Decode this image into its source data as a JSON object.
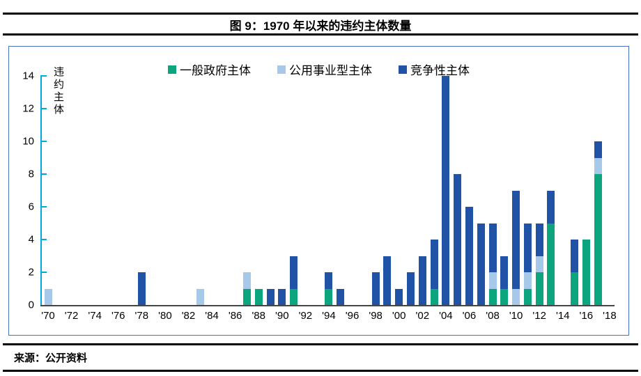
{
  "page": {
    "title": "图 9：1970 年以来的违约主体数量",
    "source_label": "来源：公开资料"
  },
  "colors": {
    "frame_border": "#4472C4",
    "y_axis": "#00A9E0",
    "x_axis": "#454545",
    "rule": "#000000",
    "green": "#0CA57E",
    "light_blue": "#A6C9E9",
    "dark_blue": "#2053A5"
  },
  "chart_data": {
    "type": "bar",
    "stacked": true,
    "title": "图 9：1970 年以来的违约主体数量",
    "ylabel": "违约主体",
    "xlabel": "",
    "ylim": [
      0,
      14
    ],
    "yticks": [
      0,
      2,
      4,
      6,
      8,
      10,
      12,
      14
    ],
    "grid": false,
    "legend_position": "top-center",
    "x_year_start": 1970,
    "x_year_end": 2018,
    "xtick_labels": [
      "'70",
      "'72",
      "'74",
      "'76",
      "'78",
      "'80",
      "'82",
      "'84",
      "'86",
      "'88",
      "'90",
      "'92",
      "'94",
      "'96",
      "'98",
      "'00",
      "'02",
      "'04",
      "'06",
      "'08",
      "'10",
      "'12",
      "'14",
      "'16",
      "'18"
    ],
    "series": [
      {
        "name": "一般政府主体",
        "color": "#0CA57E"
      },
      {
        "name": "公用事业型主体",
        "color": "#A6C9E9"
      },
      {
        "name": "竞争性主体",
        "color": "#2053A5"
      }
    ],
    "bars": [
      {
        "year": 1970,
        "values": [
          0,
          1,
          0
        ]
      },
      {
        "year": 1978,
        "values": [
          0,
          0,
          2
        ]
      },
      {
        "year": 1983,
        "values": [
          0,
          1,
          0
        ]
      },
      {
        "year": 1987,
        "values": [
          1,
          1,
          0
        ]
      },
      {
        "year": 1988,
        "values": [
          1,
          0,
          0
        ]
      },
      {
        "year": 1989,
        "values": [
          0,
          0,
          1
        ]
      },
      {
        "year": 1990,
        "values": [
          0,
          0,
          1
        ]
      },
      {
        "year": 1991,
        "values": [
          1,
          0,
          2
        ]
      },
      {
        "year": 1994,
        "values": [
          1,
          0,
          1
        ]
      },
      {
        "year": 1995,
        "values": [
          0,
          0,
          1
        ]
      },
      {
        "year": 1998,
        "values": [
          0,
          0,
          2
        ]
      },
      {
        "year": 1999,
        "values": [
          0,
          0,
          3
        ]
      },
      {
        "year": 2000,
        "values": [
          0,
          0,
          1
        ]
      },
      {
        "year": 2001,
        "values": [
          0,
          0,
          2
        ]
      },
      {
        "year": 2002,
        "values": [
          0,
          0,
          3
        ]
      },
      {
        "year": 2003,
        "values": [
          1,
          0,
          3
        ]
      },
      {
        "year": 2004,
        "values": [
          0,
          0,
          14
        ]
      },
      {
        "year": 2005,
        "values": [
          0,
          0,
          8
        ]
      },
      {
        "year": 2006,
        "values": [
          0,
          0,
          6
        ]
      },
      {
        "year": 2007,
        "values": [
          0,
          0,
          5
        ]
      },
      {
        "year": 2008,
        "values": [
          1,
          1,
          3
        ]
      },
      {
        "year": 2009,
        "values": [
          1,
          0,
          2
        ]
      },
      {
        "year": 2010,
        "values": [
          0,
          1,
          6
        ]
      },
      {
        "year": 2011,
        "values": [
          1,
          1,
          3
        ]
      },
      {
        "year": 2012,
        "values": [
          2,
          1,
          2
        ]
      },
      {
        "year": 2013,
        "values": [
          5,
          0,
          2
        ]
      },
      {
        "year": 2015,
        "values": [
          2,
          0,
          2
        ]
      },
      {
        "year": 2016,
        "values": [
          4,
          0,
          0
        ]
      },
      {
        "year": 2017,
        "values": [
          8,
          1,
          1
        ]
      }
    ]
  }
}
